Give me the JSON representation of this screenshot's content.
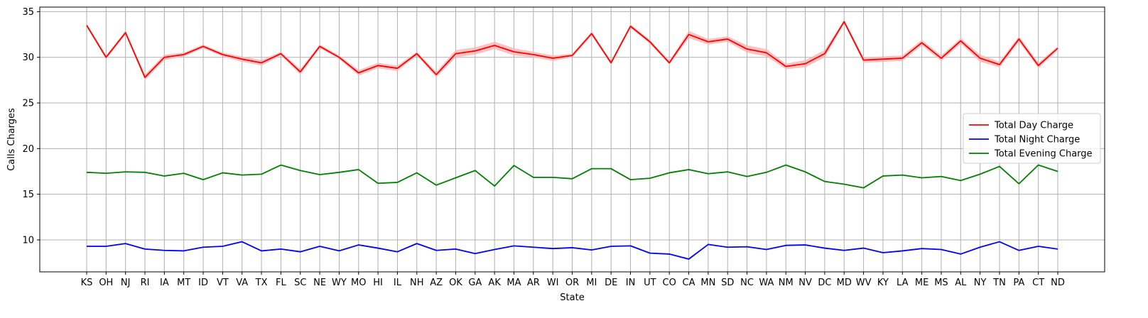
{
  "chart_data": {
    "type": "line",
    "xlabel": "State",
    "ylabel": "Calls Charges",
    "ylim": [
      6.5,
      35.5
    ],
    "yticks": [
      10,
      15,
      20,
      25,
      30,
      35
    ],
    "grid": true,
    "legend_position": "center-right",
    "categories": [
      "KS",
      "OH",
      "NJ",
      "RI",
      "IA",
      "MT",
      "ID",
      "VT",
      "VA",
      "TX",
      "FL",
      "SC",
      "NE",
      "WY",
      "MO",
      "HI",
      "IL",
      "NH",
      "AZ",
      "OK",
      "GA",
      "AK",
      "MA",
      "AR",
      "WI",
      "OR",
      "MI",
      "DE",
      "IN",
      "UT",
      "CO",
      "CA",
      "MN",
      "SD",
      "NC",
      "WA",
      "NM",
      "NV",
      "DC",
      "MD",
      "WV",
      "KY",
      "LA",
      "ME",
      "MS",
      "AL",
      "NY",
      "TN",
      "PA",
      "CT",
      "ND"
    ],
    "series": [
      {
        "name": "Total Day Charge",
        "color": "#ff0000",
        "band_color": "#ffb3b3",
        "values": [
          33.5,
          30.0,
          32.7,
          27.8,
          30.0,
          30.3,
          31.2,
          30.3,
          29.8,
          29.4,
          30.4,
          28.4,
          31.2,
          30.0,
          28.3,
          29.1,
          28.8,
          30.4,
          28.1,
          30.4,
          30.7,
          31.3,
          30.6,
          30.3,
          29.9,
          30.2,
          32.6,
          29.4,
          33.4,
          31.7,
          29.4,
          32.5,
          31.7,
          32.0,
          30.9,
          30.5,
          29.0,
          29.3,
          30.4,
          33.9,
          29.7,
          29.8,
          29.9,
          31.6,
          29.9,
          31.8,
          29.9,
          29.2,
          32.0,
          29.1,
          31.0
        ],
        "band": [
          0.2,
          0.2,
          0.2,
          0.3,
          0.3,
          0.2,
          0.2,
          0.2,
          0.3,
          0.3,
          0.2,
          0.3,
          0.2,
          0.2,
          0.3,
          0.3,
          0.3,
          0.2,
          0.3,
          0.4,
          0.4,
          0.4,
          0.4,
          0.3,
          0.3,
          0.2,
          0.2,
          0.2,
          0.2,
          0.2,
          0.2,
          0.4,
          0.3,
          0.3,
          0.4,
          0.4,
          0.3,
          0.4,
          0.4,
          0.2,
          0.3,
          0.3,
          0.3,
          0.3,
          0.3,
          0.3,
          0.4,
          0.3,
          0.3,
          0.3,
          0.2
        ]
      },
      {
        "name": "Total Night Charge",
        "color": "#0000ff",
        "band_color": "#b3b3ff",
        "values": [
          9.3,
          9.3,
          9.6,
          9.0,
          8.85,
          8.8,
          9.2,
          9.3,
          9.8,
          8.8,
          9.0,
          8.7,
          9.3,
          8.8,
          9.45,
          9.1,
          8.7,
          9.6,
          8.85,
          9.0,
          8.5,
          8.95,
          9.35,
          9.2,
          9.05,
          9.15,
          8.9,
          9.3,
          9.35,
          8.55,
          8.45,
          7.9,
          9.5,
          9.2,
          9.25,
          8.95,
          9.4,
          9.45,
          9.1,
          8.85,
          9.1,
          8.6,
          8.8,
          9.05,
          8.95,
          8.45,
          9.2,
          9.8,
          8.85,
          9.3,
          9.0
        ],
        "band": [
          0.05,
          0.05,
          0.05,
          0.05,
          0.05,
          0.05,
          0.05,
          0.05,
          0.05,
          0.05,
          0.05,
          0.05,
          0.05,
          0.05,
          0.05,
          0.05,
          0.05,
          0.05,
          0.05,
          0.05,
          0.05,
          0.05,
          0.05,
          0.05,
          0.05,
          0.05,
          0.05,
          0.05,
          0.05,
          0.05,
          0.05,
          0.1,
          0.05,
          0.05,
          0.05,
          0.05,
          0.05,
          0.05,
          0.05,
          0.05,
          0.05,
          0.05,
          0.05,
          0.05,
          0.05,
          0.05,
          0.05,
          0.05,
          0.05,
          0.05,
          0.05
        ]
      },
      {
        "name": "Total Evening Charge",
        "color": "#008000",
        "band_color": "#99cc99",
        "values": [
          17.4,
          17.3,
          17.45,
          17.4,
          17.0,
          17.3,
          16.6,
          17.35,
          17.1,
          17.2,
          18.2,
          17.6,
          17.15,
          17.4,
          17.7,
          16.2,
          16.3,
          17.35,
          16.0,
          16.8,
          17.6,
          15.9,
          18.15,
          16.85,
          16.85,
          16.7,
          17.8,
          17.8,
          16.6,
          16.75,
          17.35,
          17.7,
          17.25,
          17.45,
          16.95,
          17.4,
          18.2,
          17.45,
          16.4,
          16.1,
          15.7,
          17.0,
          17.1,
          16.8,
          16.95,
          16.5,
          17.2,
          18.05,
          16.15,
          18.2,
          17.5
        ]
      }
    ]
  }
}
